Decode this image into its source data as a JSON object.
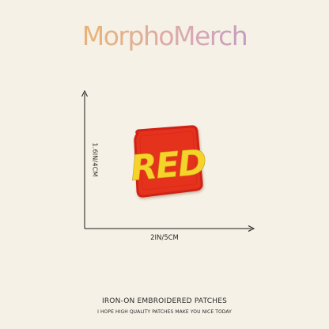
{
  "brand": {
    "name": "MorphoMerch"
  },
  "dimensions": {
    "height_label": "1.6IN/4CM",
    "width_label": "2IN/5CM"
  },
  "patch": {
    "text": "RED",
    "colors": {
      "base": "#e5311f",
      "border": "#cf2414",
      "text": "#f6d32b"
    }
  },
  "footer": {
    "title": "IRON-ON EMBROIDERED PATCHES",
    "subtitle": "I HOPE HIGH QUALITY PATCHES MAKE YOU NICE TODAY"
  },
  "colors": {
    "background": "#f6f1e6",
    "axis": "#1a1a1a"
  }
}
